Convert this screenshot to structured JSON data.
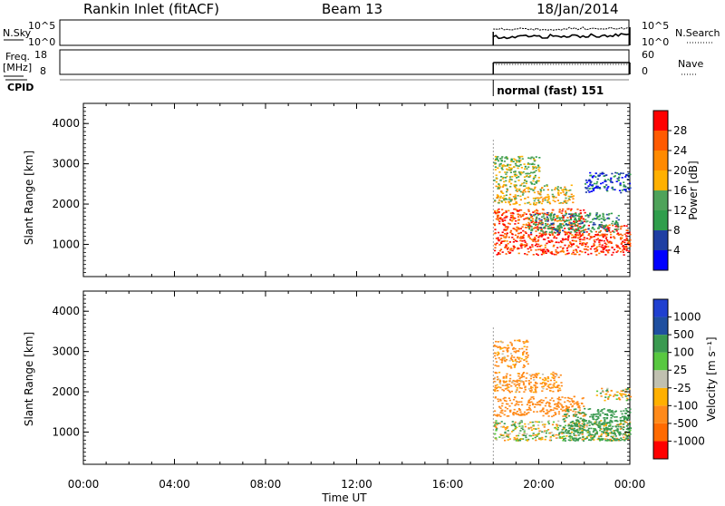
{
  "header": {
    "station": "Rankin Inlet (fitACF)",
    "beam": "Beam 13",
    "date": "18/Jan/2014"
  },
  "summary_panels": {
    "nsky_label": "N.Sky",
    "nsearch_label": "N.Search",
    "nsky_ticks": [
      "10^5",
      "10^0"
    ],
    "nsearch_ticks": [
      "10^5",
      "10^0"
    ],
    "freq_label_1": "Freq.",
    "freq_label_2": "[MHz]",
    "freq_ticks": [
      "18",
      "8"
    ],
    "nave_label": "Nave",
    "nave_ticks": [
      "60",
      "0"
    ],
    "cpid_label": "CPID",
    "cpid_text": "normal (fast) 151"
  },
  "colors": {
    "power_scale": [
      "#0000ff",
      "#1f3fa3",
      "#2f9e4c",
      "#4fa35a",
      "#ffb000",
      "#ff8a00",
      "#ff5a00",
      "#ff0000"
    ],
    "velocity_scale": [
      "#ff0000",
      "#ff6a00",
      "#ff8a1a",
      "#ffb000",
      "#c0c0b0",
      "#58c840",
      "#3a9a50",
      "#1f4fa0",
      "#2040d0"
    ]
  },
  "chart_data": [
    {
      "type": "heatmap",
      "panel": "power",
      "title": "",
      "xlabel": "Time UT",
      "ylabel": "Slant Range [km]",
      "x_ticks": [
        "00:00",
        "04:00",
        "08:00",
        "12:00",
        "16:00",
        "20:00",
        "00:00"
      ],
      "xlim_hours": [
        0,
        24
      ],
      "y_ticks": [
        "4000",
        "3000",
        "2000",
        "1000"
      ],
      "ylim": [
        200,
        4500
      ],
      "colorbar_label": "Power [dB]",
      "colorbar_ticks": [
        "28",
        "24",
        "20",
        "16",
        "12",
        "8",
        "4"
      ],
      "clim": [
        0,
        32
      ],
      "data_start_hour": 18.0,
      "data_end_hour": 24.0,
      "scatter_regions": [
        {
          "t0": 18.0,
          "t1": 24.0,
          "r0": 750,
          "r1": 1500,
          "level": 28
        },
        {
          "t0": 18.0,
          "t1": 22.0,
          "r0": 1500,
          "r1": 1900,
          "level": 26
        },
        {
          "t0": 19.5,
          "t1": 23.5,
          "r0": 1300,
          "r1": 1800,
          "level": 10
        },
        {
          "t0": 18.0,
          "t1": 21.5,
          "r0": 2000,
          "r1": 2500,
          "level": 18
        },
        {
          "t0": 22.0,
          "t1": 24.0,
          "r0": 2300,
          "r1": 2800,
          "level": 6
        },
        {
          "t0": 18.0,
          "t1": 20.0,
          "r0": 2500,
          "r1": 3200,
          "level": 14
        }
      ]
    },
    {
      "type": "heatmap",
      "panel": "velocity",
      "title": "",
      "xlabel": "Time UT",
      "ylabel": "Slant Range [km]",
      "x_ticks": [
        "00:00",
        "04:00",
        "08:00",
        "12:00",
        "16:00",
        "20:00",
        "00:00"
      ],
      "xlim_hours": [
        0,
        24
      ],
      "y_ticks": [
        "4000",
        "3000",
        "2000",
        "1000"
      ],
      "ylim": [
        200,
        4500
      ],
      "colorbar_label": "Velocity [m s⁻¹]",
      "colorbar_ticks": [
        "1000",
        "500",
        "100",
        "25",
        "-25",
        "-100",
        "-500",
        "-1000"
      ],
      "clim": [
        -1000,
        1000
      ],
      "data_start_hour": 18.0,
      "data_end_hour": 24.0,
      "scatter_regions": [
        {
          "t0": 18.0,
          "t1": 22.0,
          "r0": 1400,
          "r1": 1900,
          "level": -300
        },
        {
          "t0": 18.0,
          "t1": 21.0,
          "r0": 2000,
          "r1": 2500,
          "level": -200
        },
        {
          "t0": 18.0,
          "t1": 24.0,
          "r0": 800,
          "r1": 1300,
          "level": 0
        },
        {
          "t0": 21.0,
          "t1": 24.0,
          "r0": 800,
          "r1": 1600,
          "level": 300
        },
        {
          "t0": 18.0,
          "t1": 19.5,
          "r0": 2600,
          "r1": 3300,
          "level": -200
        },
        {
          "t0": 22.5,
          "t1": 24.0,
          "r0": 1800,
          "r1": 2100,
          "level": 0
        }
      ]
    }
  ]
}
